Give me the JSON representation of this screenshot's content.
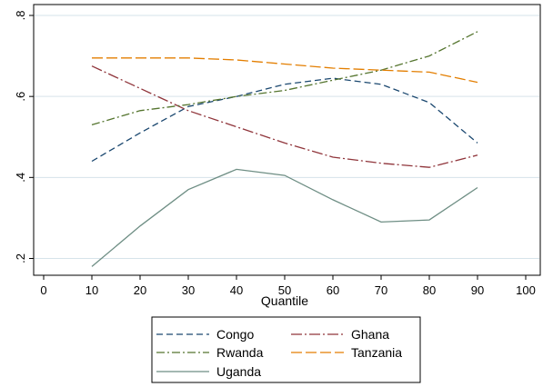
{
  "chart_data": {
    "type": "line",
    "title": "",
    "xlabel": "Quantile",
    "ylabel": "",
    "xlim": [
      0,
      100
    ],
    "ylim": [
      0.18,
      0.82
    ],
    "x_ticks": [
      0,
      10,
      20,
      30,
      40,
      50,
      60,
      70,
      80,
      90,
      100
    ],
    "x_tick_labels": [
      "0",
      "10",
      "20",
      "30",
      "40",
      "50",
      "60",
      "70",
      "80",
      "90",
      "100"
    ],
    "y_ticks": [
      0.2,
      0.4,
      0.6,
      0.8
    ],
    "y_tick_labels": [
      ".2",
      ".4",
      ".6",
      ".8"
    ],
    "grid": "horizontal",
    "legend_position": "bottom",
    "x": [
      10,
      20,
      30,
      40,
      50,
      60,
      70,
      80,
      90
    ],
    "series": [
      {
        "name": "Congo",
        "color": "#1a476f",
        "dash": "dash",
        "values": [
          0.44,
          0.51,
          0.575,
          0.6,
          0.63,
          0.645,
          0.63,
          0.585,
          0.485
        ]
      },
      {
        "name": "Ghana",
        "color": "#90353b",
        "dash": "longdash-dot",
        "values": [
          0.675,
          0.62,
          0.565,
          0.525,
          0.485,
          0.45,
          0.435,
          0.425,
          0.455
        ]
      },
      {
        "name": "Rwanda",
        "color": "#55752f",
        "dash": "dash-dot",
        "values": [
          0.53,
          0.565,
          0.58,
          0.6,
          0.615,
          0.64,
          0.665,
          0.7,
          0.76
        ]
      },
      {
        "name": "Tanzania",
        "color": "#e37e00",
        "dash": "longdash",
        "values": [
          0.695,
          0.695,
          0.695,
          0.69,
          0.68,
          0.67,
          0.665,
          0.66,
          0.635
        ]
      },
      {
        "name": "Uganda",
        "color": "#6e8e84",
        "dash": "solid",
        "values": [
          0.18,
          0.28,
          0.37,
          0.42,
          0.405,
          0.345,
          0.29,
          0.295,
          0.375
        ]
      }
    ]
  }
}
